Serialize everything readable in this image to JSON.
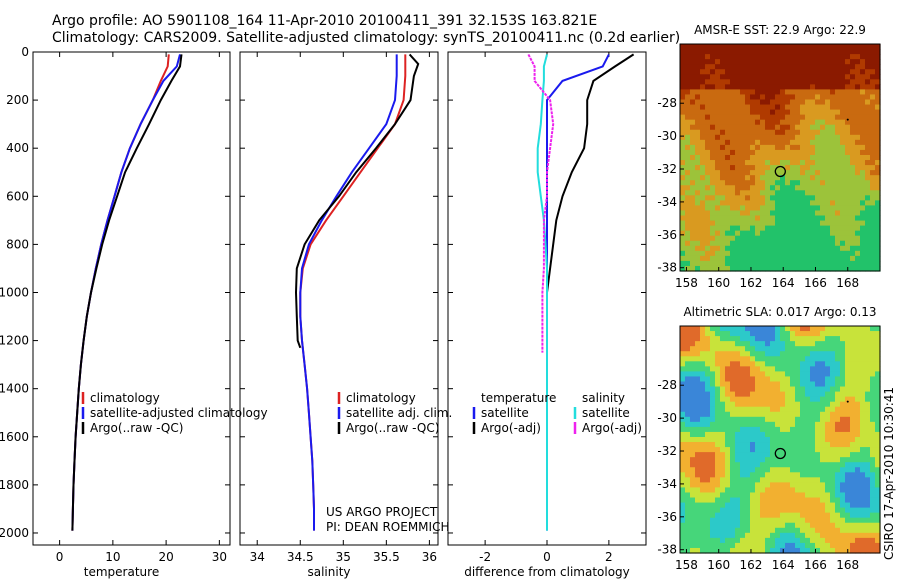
{
  "header": {
    "line1": "Argo profile: AO 5901108_164 11-Apr-2010 20100411_391 32.153S 163.821E",
    "line2": "Climatology: CARS2009. Satellite-adjusted climatology: synTS_20100411.nc (0.2d earlier)"
  },
  "colors": {
    "climatology": "#dd2222",
    "satellite": "#1a1aee",
    "argo": "#000000",
    "sat_diff": "#22dddd",
    "argo_adj": "#ee22ee"
  },
  "chart_data": [
    {
      "type": "line",
      "xlabel": "temperature",
      "ylabel": "",
      "xlim": [
        -5,
        32
      ],
      "ylim": [
        2050,
        0
      ],
      "xticks": [
        0,
        10,
        20,
        30
      ],
      "yticks": [
        0,
        200,
        400,
        600,
        800,
        1000,
        1200,
        1400,
        1600,
        1800,
        2000
      ],
      "legend": {
        "placement": "center-left",
        "entries": [
          "climatology",
          "satellite-adjusted climatology",
          "Argo(..raw -QC)"
        ]
      },
      "series": [
        {
          "name": "climatology",
          "color_key": "climatology",
          "points": [
            [
              20.5,
              10
            ],
            [
              20.3,
              60
            ],
            [
              19,
              120
            ],
            [
              17.5,
              200
            ],
            [
              15.2,
              300
            ],
            [
              13.2,
              400
            ],
            [
              11.6,
              500
            ],
            [
              10.3,
              600
            ],
            [
              9,
              700
            ],
            [
              7.8,
              800
            ],
            [
              6.8,
              900
            ],
            [
              5.9,
              1000
            ],
            [
              5.1,
              1100
            ],
            [
              4.5,
              1200
            ],
            [
              4,
              1300
            ],
            [
              3.6,
              1400
            ],
            [
              3.3,
              1500
            ],
            [
              3,
              1600
            ],
            [
              2.8,
              1700
            ],
            [
              2.6,
              1800
            ],
            [
              2.5,
              1900
            ],
            [
              2.4,
              1990
            ]
          ]
        },
        {
          "name": "satellite-adjusted climatology",
          "color_key": "satellite",
          "points": [
            [
              22.6,
              10
            ],
            [
              22,
              60
            ],
            [
              19.5,
              120
            ],
            [
              17.5,
              200
            ],
            [
              15.2,
              300
            ],
            [
              13.2,
              400
            ],
            [
              11.6,
              500
            ],
            [
              10.3,
              600
            ],
            [
              9,
              700
            ],
            [
              7.8,
              800
            ],
            [
              6.8,
              900
            ],
            [
              5.9,
              1000
            ],
            [
              5.1,
              1100
            ],
            [
              4.5,
              1200
            ],
            [
              4,
              1300
            ],
            [
              3.6,
              1400
            ],
            [
              3.3,
              1500
            ],
            [
              3,
              1600
            ],
            [
              2.8,
              1700
            ],
            [
              2.6,
              1800
            ],
            [
              2.5,
              1900
            ],
            [
              2.4,
              1990
            ]
          ]
        },
        {
          "name": "Argo(..raw -QC)",
          "color_key": "argo",
          "points": [
            [
              22.9,
              10
            ],
            [
              22.6,
              60
            ],
            [
              21,
              120
            ],
            [
              19,
              200
            ],
            [
              16.8,
              300
            ],
            [
              14.5,
              400
            ],
            [
              12.3,
              500
            ],
            [
              10.8,
              600
            ],
            [
              9.3,
              700
            ],
            [
              8,
              800
            ],
            [
              6.9,
              900
            ],
            [
              5.9,
              1000
            ],
            [
              5.1,
              1100
            ],
            [
              4.5,
              1200
            ],
            [
              4,
              1300
            ],
            [
              3.6,
              1400
            ],
            [
              3.3,
              1500
            ],
            [
              3,
              1600
            ],
            [
              2.8,
              1700
            ],
            [
              2.6,
              1800
            ],
            [
              2.5,
              1900
            ],
            [
              2.4,
              1990
            ]
          ]
        }
      ]
    },
    {
      "type": "line",
      "xlabel": "salinity",
      "ylabel": "",
      "xlim": [
        33.8,
        36.1
      ],
      "ylim": [
        2050,
        0
      ],
      "xticks": [
        34,
        34.5,
        35,
        35.5,
        36
      ],
      "legend": {
        "placement": "center-right",
        "entries": [
          "climatology",
          "satellite adj. clim.",
          "Argo(..raw -QC)"
        ]
      },
      "annotation": [
        "US ARGO PROJECT",
        "PI: DEAN ROEMMICH"
      ],
      "series": [
        {
          "name": "climatology",
          "color_key": "climatology",
          "points": [
            [
              35.72,
              10
            ],
            [
              35.72,
              100
            ],
            [
              35.7,
              200
            ],
            [
              35.6,
              300
            ],
            [
              35.4,
              400
            ],
            [
              35.2,
              500
            ],
            [
              35,
              600
            ],
            [
              34.8,
              700
            ],
            [
              34.62,
              800
            ],
            [
              34.53,
              900
            ],
            [
              34.5,
              1000
            ],
            [
              34.5,
              1100
            ],
            [
              34.52,
              1200
            ],
            [
              34.55,
              1300
            ],
            [
              34.58,
              1400
            ],
            [
              34.6,
              1500
            ],
            [
              34.62,
              1600
            ],
            [
              34.64,
              1700
            ],
            [
              34.65,
              1800
            ],
            [
              34.66,
              1900
            ],
            [
              34.66,
              1990
            ]
          ]
        },
        {
          "name": "satellite adj. clim.",
          "color_key": "satellite",
          "points": [
            [
              35.62,
              10
            ],
            [
              35.62,
              100
            ],
            [
              35.6,
              200
            ],
            [
              35.5,
              300
            ],
            [
              35.3,
              400
            ],
            [
              35.1,
              500
            ],
            [
              34.92,
              600
            ],
            [
              34.75,
              700
            ],
            [
              34.6,
              800
            ],
            [
              34.52,
              900
            ],
            [
              34.5,
              1000
            ],
            [
              34.5,
              1100
            ],
            [
              34.52,
              1200
            ],
            [
              34.55,
              1300
            ],
            [
              34.58,
              1400
            ],
            [
              34.6,
              1500
            ],
            [
              34.62,
              1600
            ],
            [
              34.64,
              1700
            ],
            [
              34.65,
              1800
            ],
            [
              34.66,
              1900
            ],
            [
              34.66,
              1990
            ]
          ]
        },
        {
          "name": "Argo(..raw -QC)",
          "color_key": "argo",
          "points": [
            [
              35.77,
              10
            ],
            [
              35.87,
              50
            ],
            [
              35.82,
              100
            ],
            [
              35.78,
              200
            ],
            [
              35.6,
              300
            ],
            [
              35.38,
              400
            ],
            [
              35.15,
              500
            ],
            [
              34.95,
              600
            ],
            [
              34.72,
              700
            ],
            [
              34.55,
              800
            ],
            [
              34.46,
              900
            ],
            [
              34.45,
              1000
            ],
            [
              34.46,
              1100
            ],
            [
              34.47,
              1200
            ],
            [
              34.5,
              1230
            ]
          ]
        }
      ]
    },
    {
      "type": "line",
      "xlabel": "difference from climatology",
      "ylabel": "",
      "xlim": [
        -3.2,
        3.2
      ],
      "ylim": [
        2050,
        0
      ],
      "xticks": [
        -2,
        0,
        2
      ],
      "legend": {
        "placement": "center",
        "entries": [
          "temperature",
          "satellite",
          "Argo(-adj)",
          "salinity",
          "satellite",
          "Argo(-adj)"
        ]
      },
      "series": [
        {
          "name": "temperature satellite",
          "color_key": "satellite",
          "points": [
            [
              2,
              10
            ],
            [
              1.8,
              60
            ],
            [
              0.5,
              120
            ],
            [
              0,
              200
            ],
            [
              0,
              300
            ],
            [
              0,
              400
            ],
            [
              0,
              500
            ],
            [
              0,
              600
            ],
            [
              0,
              700
            ],
            [
              0,
              800
            ],
            [
              0,
              900
            ],
            [
              0,
              1000
            ],
            [
              0,
              1100
            ],
            [
              0,
              1200
            ],
            [
              0,
              1990
            ]
          ]
        },
        {
          "name": "temperature Argo(-adj)",
          "color_key": "argo",
          "points": [
            [
              2.8,
              10
            ],
            [
              2.2,
              60
            ],
            [
              1.5,
              120
            ],
            [
              1.3,
              200
            ],
            [
              1.3,
              300
            ],
            [
              1.2,
              400
            ],
            [
              0.8,
              500
            ],
            [
              0.5,
              600
            ],
            [
              0.3,
              700
            ],
            [
              0.2,
              800
            ],
            [
              0.1,
              900
            ],
            [
              0,
              1000
            ],
            [
              0,
              1100
            ],
            [
              0,
              1200
            ],
            [
              0,
              1250
            ]
          ]
        },
        {
          "name": "salinity satellite",
          "color_key": "sat_diff",
          "points": [
            [
              0,
              10
            ],
            [
              -0.1,
              60
            ],
            [
              -0.1,
              120
            ],
            [
              -0.15,
              200
            ],
            [
              -0.2,
              300
            ],
            [
              -0.3,
              400
            ],
            [
              -0.3,
              500
            ],
            [
              -0.2,
              600
            ],
            [
              -0.1,
              700
            ],
            [
              -0.05,
              800
            ],
            [
              0,
              900
            ],
            [
              0,
              1000
            ],
            [
              0,
              1100
            ],
            [
              0,
              1200
            ],
            [
              0,
              1990
            ]
          ]
        },
        {
          "name": "salinity Argo(-adj)",
          "color_key": "argo_adj",
          "points": [
            [
              -0.6,
              10
            ],
            [
              -0.4,
              60
            ],
            [
              -0.4,
              120
            ],
            [
              0.1,
              200
            ],
            [
              0.2,
              300
            ],
            [
              0.1,
              400
            ],
            [
              0,
              500
            ],
            [
              0,
              600
            ],
            [
              -0.1,
              700
            ],
            [
              -0.1,
              800
            ],
            [
              -0.1,
              900
            ],
            [
              -0.15,
              1000
            ],
            [
              -0.15,
              1100
            ],
            [
              -0.15,
              1200
            ],
            [
              -0.15,
              1250
            ]
          ]
        }
      ]
    },
    {
      "type": "heatmap",
      "title": "AMSR-E SST: 22.9 Argo: 22.9",
      "xlim": [
        157.6,
        170
      ],
      "ylim": [
        -38.2,
        -24.4
      ],
      "xticks": [
        158,
        160,
        162,
        164,
        166,
        168
      ],
      "yticks": [
        -28,
        -30,
        -32,
        -34,
        -36,
        -38
      ],
      "marker": {
        "lon": 163.82,
        "lat": -32.15
      },
      "colors": [
        "#8b1a00",
        "#b03a00",
        "#c96a10",
        "#d99a20",
        "#9cc33a",
        "#22c26a"
      ]
    },
    {
      "type": "heatmap",
      "title": "Altimetric SLA: 0.017 Argo: 0.13",
      "xlim": [
        157.6,
        170
      ],
      "ylim": [
        -38.2,
        -24.4
      ],
      "xticks": [
        158,
        160,
        162,
        164,
        166,
        168
      ],
      "yticks": [
        -28,
        -30,
        -32,
        -34,
        -36,
        -38
      ],
      "marker": {
        "lon": 163.82,
        "lat": -32.15
      },
      "colors": [
        "#3a86d8",
        "#2cc9c9",
        "#46d67a",
        "#c8e33a",
        "#f2b030",
        "#e06a2a"
      ]
    }
  ],
  "side_label": "CSIRO 17-Apr-2010 10:30:41"
}
